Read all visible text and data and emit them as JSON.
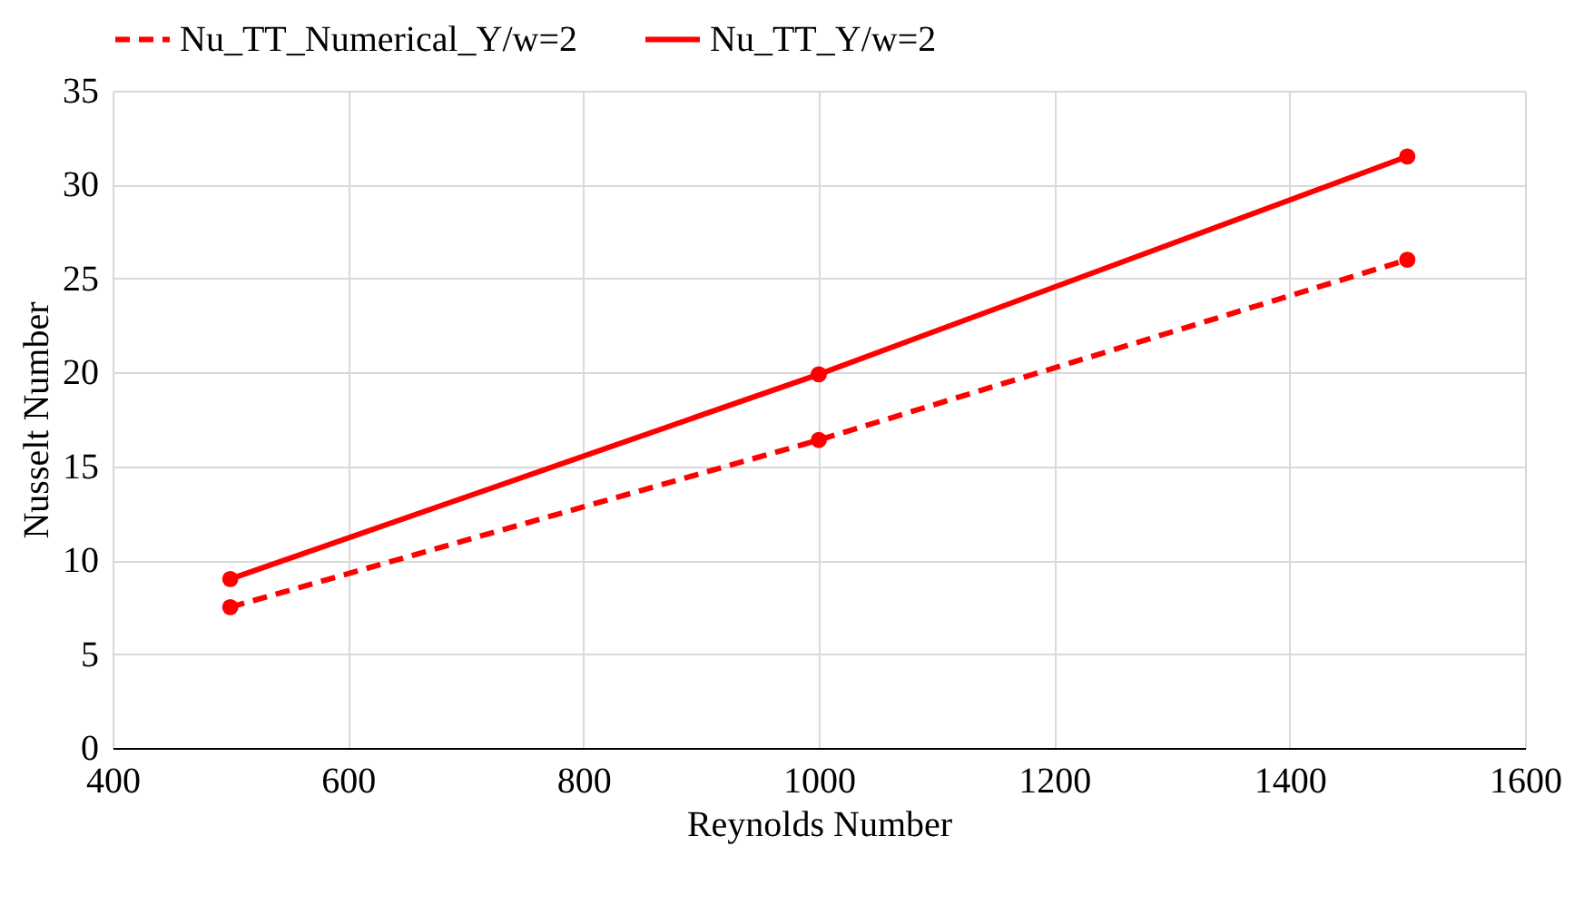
{
  "chart_data": {
    "type": "line",
    "xlabel": "Reynolds Number",
    "ylabel": "Nusselt Number",
    "x": [
      500,
      1000,
      1500
    ],
    "series": [
      {
        "name": "Nu_TT_Numerical_Y/w=2",
        "color": "#ff0000",
        "line_style": "dashed",
        "values": [
          7.5,
          16.4,
          26
        ]
      },
      {
        "name": "Nu_TT_Y/w=2",
        "color": "#ff0000",
        "line_style": "solid",
        "values": [
          9,
          19.9,
          31.5
        ]
      }
    ],
    "xlim": [
      400,
      1600
    ],
    "xticks": [
      400,
      600,
      800,
      1000,
      1200,
      1400,
      1600
    ],
    "ylim": [
      0,
      35
    ],
    "yticks": [
      0,
      5,
      10,
      15,
      20,
      25,
      30,
      35
    ],
    "grid": true,
    "legend": "top",
    "marker": "circle"
  }
}
